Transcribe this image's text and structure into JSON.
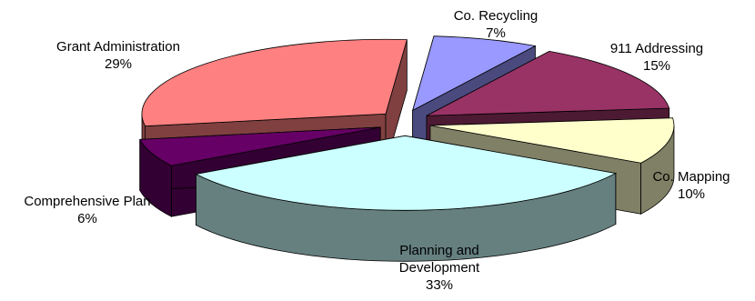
{
  "chart_data": {
    "type": "pie",
    "title": "",
    "slices": [
      {
        "label": "Co. Recycling",
        "value": 7,
        "display": "7%",
        "top": "#9999FF",
        "side": "#4A4A7E",
        "exploded": true
      },
      {
        "label": "911 Addressing",
        "value": 15,
        "display": "15%",
        "top": "#993366",
        "side": "#4D1A33",
        "exploded": true
      },
      {
        "label": "Co. Mapping",
        "value": 10,
        "display": "10%",
        "top": "#FFFFCC",
        "side": "#808066",
        "exploded": true
      },
      {
        "label": "Planning and Development",
        "label_lines": [
          "Planning and",
          "Development"
        ],
        "value": 33,
        "display": "33%",
        "top": "#CCFFFF",
        "side": "#668080",
        "exploded": true
      },
      {
        "label": "Comprehensive Plan",
        "value": 6,
        "display": "6%",
        "top": "#660066",
        "side": "#330033",
        "exploded": true
      },
      {
        "label": "Grant Administration",
        "value": 29,
        "display": "29%",
        "top": "#FF8080",
        "side": "#804040",
        "exploded": true
      }
    ]
  }
}
